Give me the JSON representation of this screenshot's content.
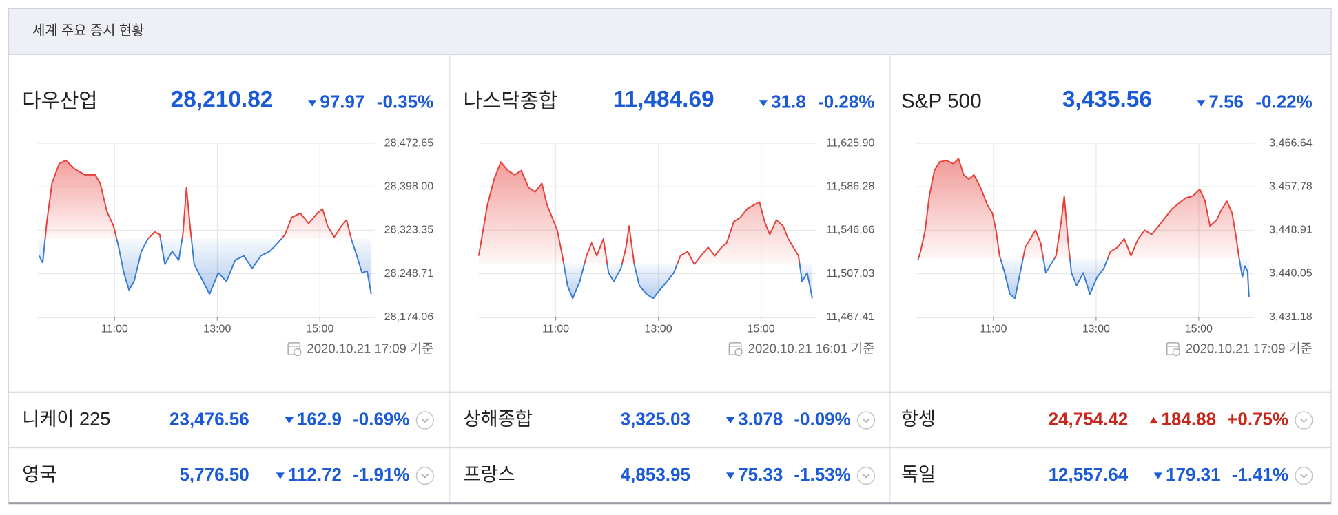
{
  "header": {
    "title": "세계 주요 증시 현황"
  },
  "colors": {
    "up": "#c9261c",
    "down": "#1a5ad7"
  },
  "chart_data": [
    {
      "type": "line",
      "title": "다우산업",
      "price": 28210.82,
      "price_label": "28,210.82",
      "change": 97.97,
      "change_pct": "-0.35%",
      "direction": "down",
      "up_color": "#e5413b",
      "down_color": "#3a7bd5",
      "x": [
        9.53,
        9.6,
        9.68,
        9.78,
        9.92,
        10.05,
        10.22,
        10.42,
        10.62,
        10.72,
        10.85,
        10.98,
        11.08,
        11.18,
        11.28,
        11.38,
        11.52,
        11.65,
        11.78,
        11.88,
        11.98,
        12.12,
        12.25,
        12.33,
        12.4,
        12.47,
        12.55,
        12.68,
        12.85,
        13.02,
        13.18,
        13.35,
        13.52,
        13.68,
        13.85,
        14.02,
        14.18,
        14.32,
        14.45,
        14.62,
        14.78,
        14.95,
        15.05,
        15.15,
        15.28,
        15.42,
        15.52,
        15.62,
        15.72,
        15.82,
        15.92,
        16.0
      ],
      "values": [
        28279.4,
        28267.7,
        28338.0,
        28403.9,
        28437.5,
        28443.4,
        28428.7,
        28418.5,
        28418.5,
        28403.9,
        28355.5,
        28330.6,
        28294.1,
        28250.2,
        28220.9,
        28235.5,
        28286.8,
        28308.7,
        28320.4,
        28316.0,
        28264.8,
        28286.8,
        28272.1,
        28316.0,
        28396.6,
        28330.6,
        28264.8,
        28242.9,
        28213.6,
        28250.2,
        28235.5,
        28272.1,
        28279.4,
        28257.5,
        28279.4,
        28286.8,
        28301.4,
        28316.0,
        28345.3,
        28352.6,
        28335.1,
        28352.6,
        28359.9,
        28330.6,
        28311.6,
        28330.6,
        28340.9,
        28305.8,
        28279.4,
        28250.2,
        28253.1,
        28213.6
      ],
      "xlim": [
        9.5,
        16
      ],
      "xticks": [
        {
          "value": 11,
          "label": "11:00"
        },
        {
          "value": 13,
          "label": "13:00"
        },
        {
          "value": 15,
          "label": "15:00"
        }
      ],
      "ylim": [
        28174.06,
        28472.65
      ],
      "yticks": [
        {
          "value": 28174.06,
          "label": "28,174.06"
        },
        {
          "value": 28248.71,
          "label": "28,248.71"
        },
        {
          "value": 28323.35,
          "label": "28,323.35"
        },
        {
          "value": 28398.0,
          "label": "28,398.00"
        },
        {
          "value": 28472.65,
          "label": "28,472.65"
        }
      ],
      "grid": true,
      "timestamp": "2020.10.21 17:09 기준"
    },
    {
      "type": "line",
      "title": "나스닥종합",
      "price": 11484.69,
      "price_label": "11,484.69",
      "change": 31.8,
      "change_pct": "-0.28%",
      "direction": "down",
      "up_color": "#e5413b",
      "down_color": "#3a7bd5",
      "x": [
        9.5,
        9.57,
        9.67,
        9.8,
        9.93,
        10.07,
        10.2,
        10.33,
        10.47,
        10.6,
        10.73,
        10.83,
        10.93,
        11.03,
        11.13,
        11.23,
        11.33,
        11.47,
        11.6,
        11.7,
        11.8,
        11.93,
        12.03,
        12.13,
        12.27,
        12.37,
        12.43,
        12.53,
        12.63,
        12.77,
        12.9,
        13.03,
        13.17,
        13.3,
        13.43,
        13.57,
        13.7,
        13.83,
        13.97,
        14.1,
        14.23,
        14.33,
        14.47,
        14.6,
        14.73,
        14.87,
        14.97,
        15.07,
        15.17,
        15.3,
        15.43,
        15.53,
        15.63,
        15.73,
        15.8,
        15.9,
        16.0
      ],
      "values": [
        11523.35,
        11542.77,
        11569.96,
        11593.27,
        11608.81,
        11601.04,
        11597.15,
        11601.04,
        11585.5,
        11581.62,
        11589.39,
        11569.96,
        11558.31,
        11546.66,
        11523.35,
        11496.16,
        11484.5,
        11500.04,
        11523.35,
        11535.0,
        11523.35,
        11538.89,
        11507.81,
        11500.04,
        11511.7,
        11531.12,
        11550.54,
        11515.58,
        11496.16,
        11488.39,
        11484.5,
        11492.27,
        11500.04,
        11507.81,
        11523.35,
        11527.23,
        11515.58,
        11523.35,
        11531.12,
        11523.35,
        11531.12,
        11535.0,
        11554.43,
        11558.31,
        11566.08,
        11569.96,
        11572.29,
        11554.43,
        11542.77,
        11555.98,
        11550.54,
        11538.89,
        11531.12,
        11523.35,
        11500.04,
        11507.81,
        11484.5
      ],
      "xlim": [
        9.5,
        16
      ],
      "xticks": [
        {
          "value": 11,
          "label": "11:00"
        },
        {
          "value": 13,
          "label": "13:00"
        },
        {
          "value": 15,
          "label": "15:00"
        }
      ],
      "ylim": [
        11467.41,
        11625.9
      ],
      "yticks": [
        {
          "value": 11467.41,
          "label": "11,467.41"
        },
        {
          "value": 11507.03,
          "label": "11,507.03"
        },
        {
          "value": 11546.66,
          "label": "11,546.66"
        },
        {
          "value": 11586.28,
          "label": "11,586.28"
        },
        {
          "value": 11625.9,
          "label": "11,625.90"
        }
      ],
      "grid": true,
      "timestamp": "2020.10.21 16:01 기준"
    },
    {
      "type": "line",
      "title": "S&P 500",
      "price": 3435.56,
      "price_label": "3,435.56",
      "change": 7.56,
      "change_pct": "-0.22%",
      "direction": "down",
      "up_color": "#e5413b",
      "down_color": "#3a7bd5",
      "x": [
        9.53,
        9.58,
        9.67,
        9.75,
        9.85,
        9.95,
        10.08,
        10.22,
        10.32,
        10.42,
        10.52,
        10.62,
        10.75,
        10.88,
        10.98,
        11.05,
        11.12,
        11.22,
        11.32,
        11.42,
        11.52,
        11.62,
        11.72,
        11.82,
        11.92,
        12.02,
        12.12,
        12.22,
        12.32,
        12.38,
        12.45,
        12.52,
        12.62,
        12.75,
        12.88,
        13.02,
        13.15,
        13.28,
        13.42,
        13.55,
        13.68,
        13.82,
        13.95,
        14.08,
        14.22,
        14.35,
        14.48,
        14.62,
        14.75,
        14.88,
        15.02,
        15.12,
        15.22,
        15.35,
        15.45,
        15.55,
        15.65,
        15.72,
        15.78,
        15.85,
        15.9,
        15.95,
        15.98
      ],
      "values": [
        3442.83,
        3444.56,
        3448.91,
        3455.86,
        3461.08,
        3462.82,
        3463.16,
        3462.47,
        3463.51,
        3460.21,
        3459.34,
        3460.21,
        3457.6,
        3454.12,
        3452.39,
        3448.91,
        3443.7,
        3440.22,
        3435.87,
        3435.0,
        3440.22,
        3445.43,
        3447.17,
        3448.91,
        3446.3,
        3440.22,
        3441.96,
        3443.7,
        3450.65,
        3455.86,
        3447.17,
        3440.22,
        3437.61,
        3440.22,
        3435.87,
        3439.35,
        3441.09,
        3444.56,
        3445.43,
        3447.17,
        3443.7,
        3447.17,
        3448.91,
        3448.04,
        3449.78,
        3451.52,
        3453.26,
        3454.47,
        3455.52,
        3455.86,
        3457.25,
        3454.99,
        3449.78,
        3451.0,
        3453.26,
        3454.82,
        3452.39,
        3448.04,
        3443.7,
        3439.35,
        3441.61,
        3440.57,
        3435.35
      ],
      "xlim": [
        9.5,
        16
      ],
      "xticks": [
        {
          "value": 11,
          "label": "11:00"
        },
        {
          "value": 13,
          "label": "13:00"
        },
        {
          "value": 15,
          "label": "15:00"
        }
      ],
      "ylim": [
        3431.18,
        3466.64
      ],
      "yticks": [
        {
          "value": 3431.18,
          "label": "3,431.18"
        },
        {
          "value": 3440.05,
          "label": "3,440.05"
        },
        {
          "value": 3448.91,
          "label": "3,448.91"
        },
        {
          "value": 3457.78,
          "label": "3,457.78"
        },
        {
          "value": 3466.64,
          "label": "3,466.64"
        }
      ],
      "grid": true,
      "timestamp": "2020.10.21 17:09 기준"
    }
  ],
  "indices": [
    {
      "name": "니케이 225",
      "price": "23,476.56",
      "change": 162.9,
      "change_pct": "-0.69%",
      "direction": "down"
    },
    {
      "name": "상해종합",
      "price": "3,325.03",
      "change": 3.078,
      "change_pct": "-0.09%",
      "direction": "down"
    },
    {
      "name": "항셍",
      "price": "24,754.42",
      "change": 184.88,
      "change_pct": "+0.75%",
      "direction": "up"
    },
    {
      "name": "영국",
      "price": "5,776.50",
      "change": 112.72,
      "change_pct": "-1.91%",
      "direction": "down"
    },
    {
      "name": "프랑스",
      "price": "4,853.95",
      "change": 75.33,
      "change_pct": "-1.53%",
      "direction": "down"
    },
    {
      "name": "독일",
      "price": "12,557.64",
      "change": 179.31,
      "change_pct": "-1.41%",
      "direction": "down"
    }
  ]
}
